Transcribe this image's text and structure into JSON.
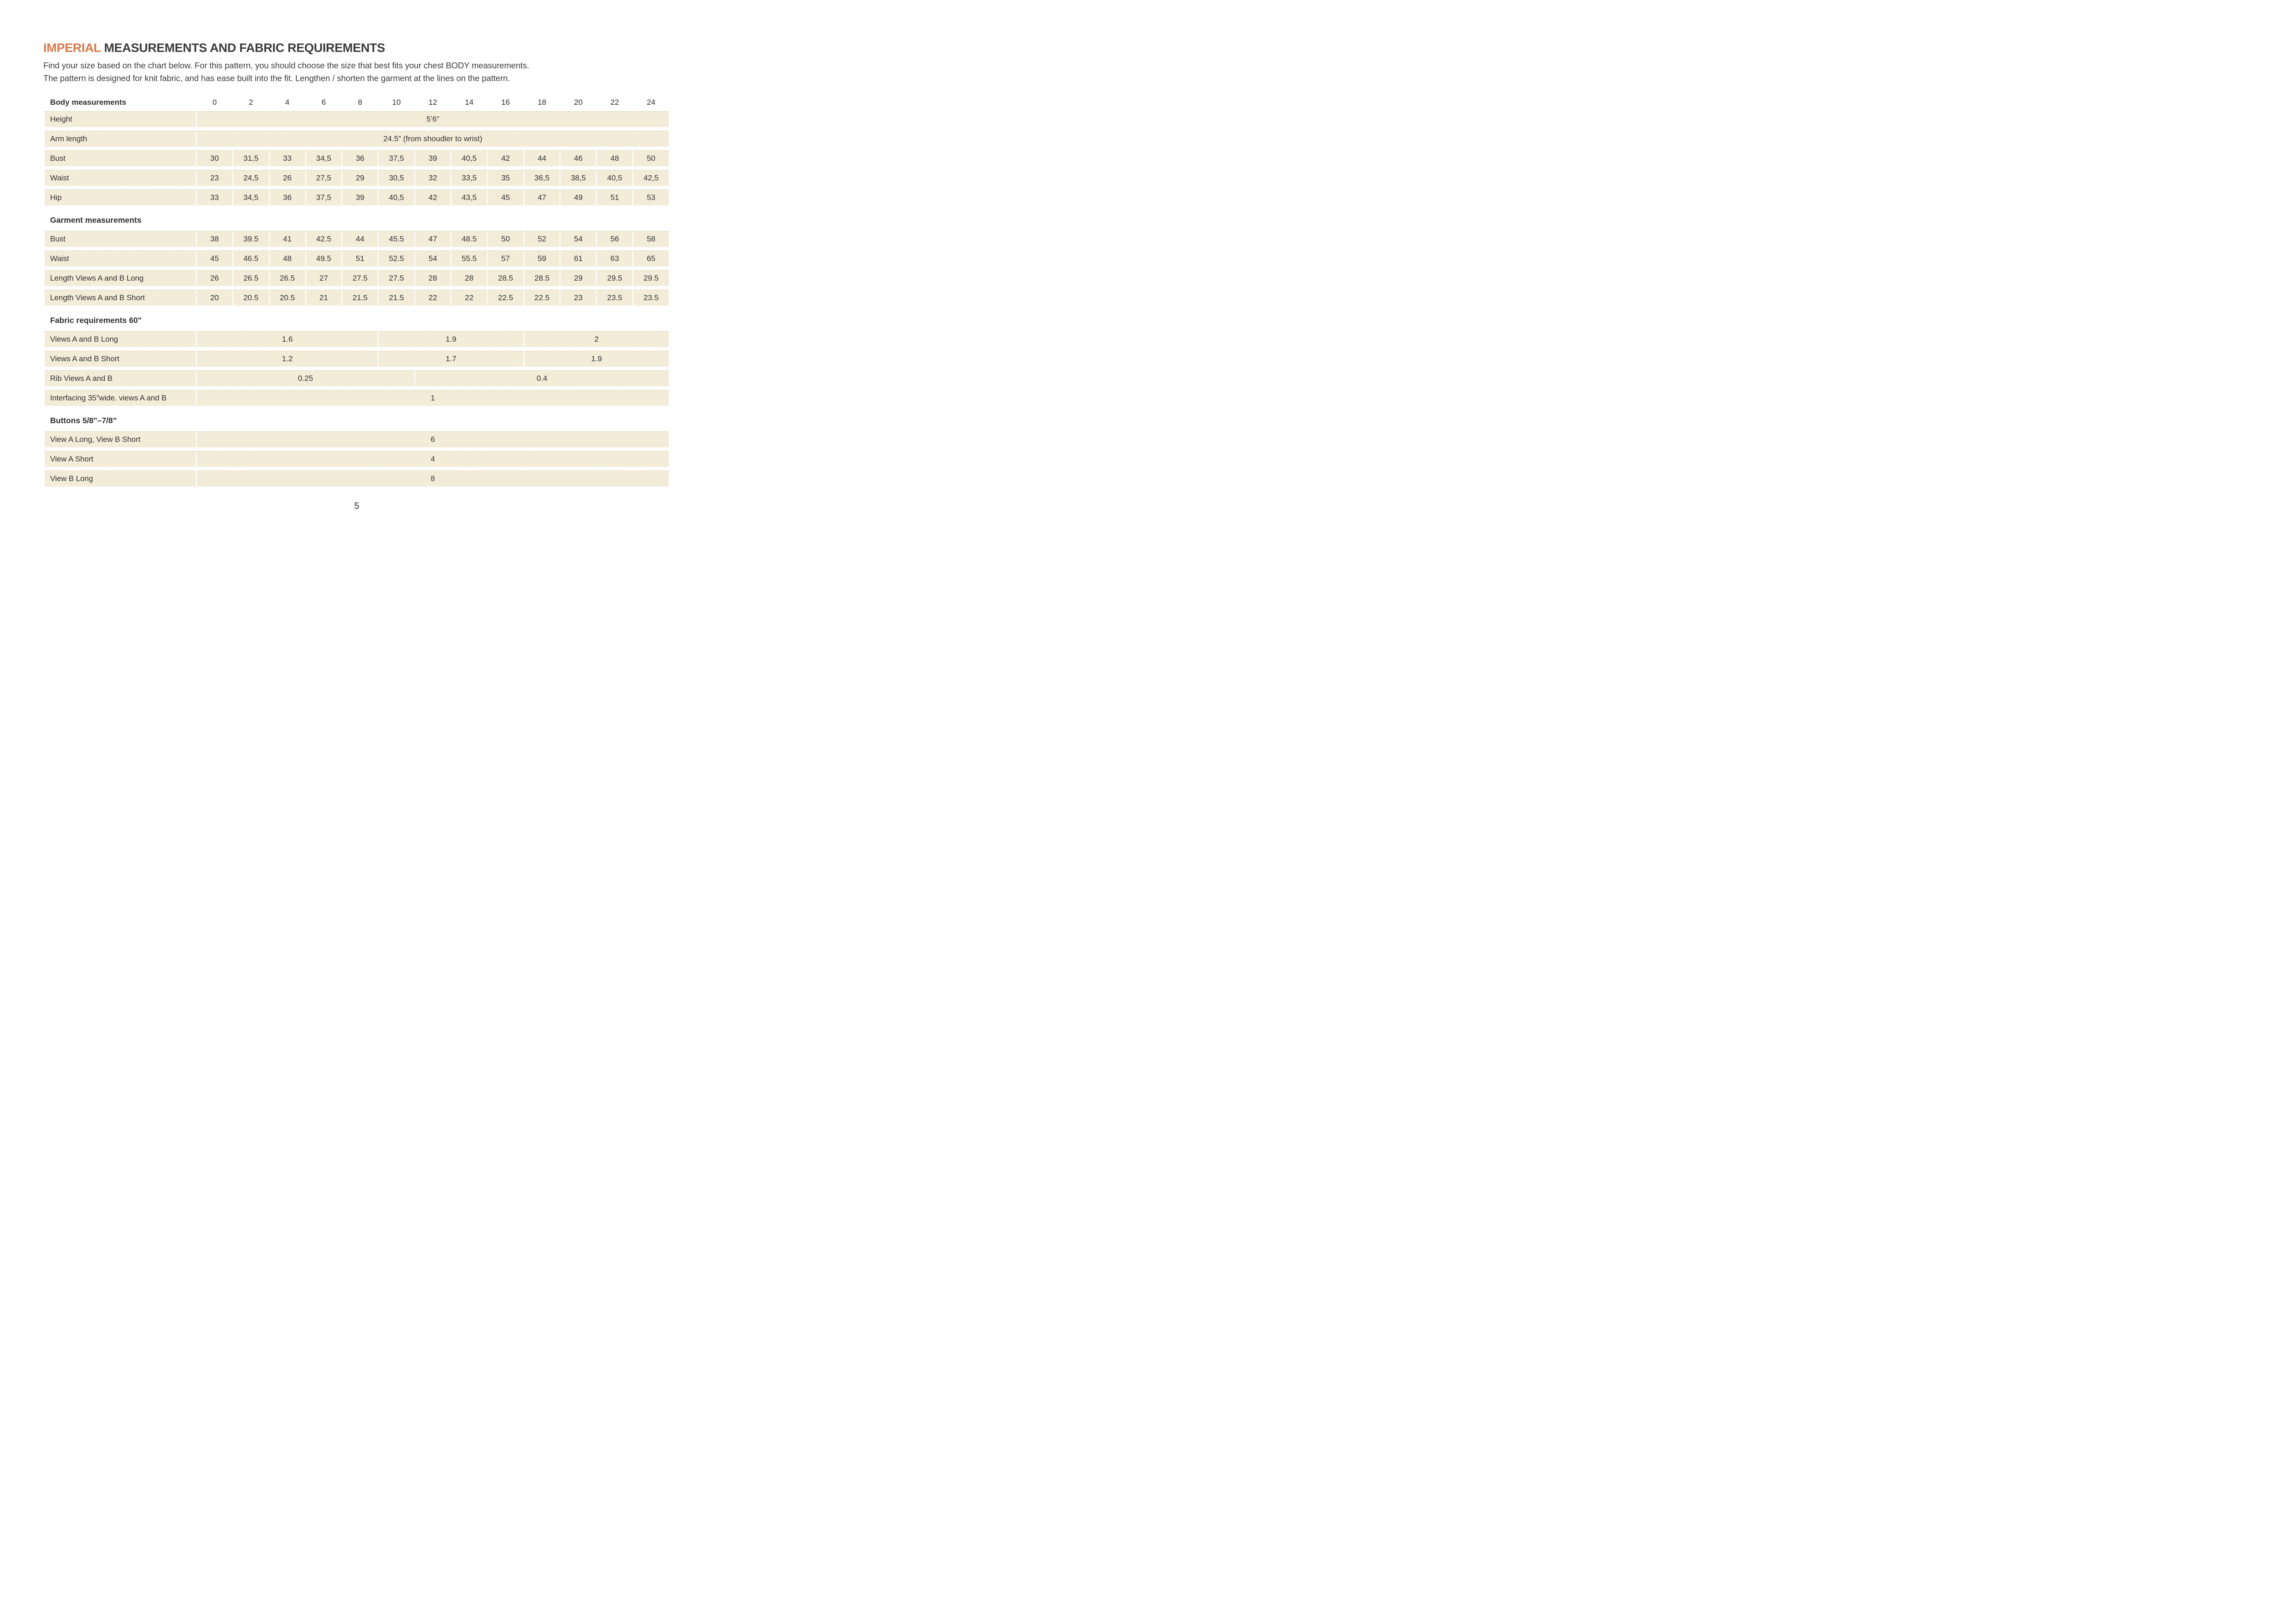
{
  "page": {
    "title_accent": "IMPERIAL",
    "title_rest": " MEASUREMENTS AND FABRIC REQUIREMENTS",
    "intro_line1": "Find your size based on the chart below. For this pattern, you should choose the size that best fits your chest BODY measurements.",
    "intro_line2": "The pattern is designed for knit fabric, and has ease built into the fit. Lengthen / shorten the garment at the lines on the pattern.",
    "page_number": "5",
    "colors": {
      "accent": "#d4794a",
      "row_background": "#f3ecd9",
      "dash_border": "#d6ccae"
    }
  },
  "table": {
    "header": {
      "label": "Body measurements",
      "sizes": [
        "0",
        "2",
        "4",
        "6",
        "8",
        "10",
        "12",
        "14",
        "16",
        "18",
        "20",
        "22",
        "24"
      ]
    },
    "body_rows": [
      {
        "label": "Height",
        "groups": [
          {
            "value": "5’6”",
            "span": 13
          }
        ]
      },
      {
        "label": "Arm length",
        "groups": [
          {
            "value": "24.5” (from shoudler to wrist)",
            "span": 13
          }
        ]
      },
      {
        "label": "Bust",
        "cells": [
          "30",
          "31,5",
          "33",
          "34,5",
          "36",
          "37,5",
          "39",
          "40,5",
          "42",
          "44",
          "46",
          "48",
          "50"
        ]
      },
      {
        "label": "Waist",
        "cells": [
          "23",
          "24,5",
          "26",
          "27,5",
          "29",
          "30,5",
          "32",
          "33,5",
          "35",
          "36,5",
          "38,5",
          "40,5",
          "42,5"
        ]
      },
      {
        "label": "Hip",
        "cells": [
          "33",
          "34,5",
          "36",
          "37,5",
          "39",
          "40,5",
          "42",
          "43,5",
          "45",
          "47",
          "49",
          "51",
          "53"
        ]
      }
    ],
    "sections": [
      {
        "title": "Garment measurements",
        "rows": [
          {
            "label": "Bust",
            "cells": [
              "38",
              "39.5",
              "41",
              "42.5",
              "44",
              "45.5",
              "47",
              "48.5",
              "50",
              "52",
              "54",
              "56",
              "58"
            ]
          },
          {
            "label": "Waist",
            "cells": [
              "45",
              "46.5",
              "48",
              "49.5",
              "51",
              "52.5",
              "54",
              "55.5",
              "57",
              "59",
              "61",
              "63",
              "65"
            ]
          },
          {
            "label": "Length Views A and B Long",
            "cells": [
              "26",
              "26.5",
              "26.5",
              "27",
              "27.5",
              "27.5",
              "28",
              "28",
              "28.5",
              "28.5",
              "29",
              "29.5",
              "29.5"
            ]
          },
          {
            "label": "Length Views A and B Short",
            "cells": [
              "20",
              "20.5",
              "20.5",
              "21",
              "21.5",
              "21.5",
              "22",
              "22",
              "22.5",
              "22.5",
              "23",
              "23.5",
              "23.5"
            ]
          }
        ]
      },
      {
        "title": "Fabric requirements 60\"",
        "rows": [
          {
            "label": "Views A and B Long",
            "groups": [
              {
                "value": "1.6",
                "span": 5
              },
              {
                "value": "1.9",
                "span": 4
              },
              {
                "value": "2",
                "span": 4
              }
            ]
          },
          {
            "label": "Views A and B Short",
            "groups": [
              {
                "value": "1.2",
                "span": 5
              },
              {
                "value": "1.7",
                "span": 4
              },
              {
                "value": "1.9",
                "span": 4
              }
            ]
          },
          {
            "label": "Rib Views A and B",
            "groups": [
              {
                "value": "0.25",
                "span": 6
              },
              {
                "value": "0.4",
                "span": 7
              }
            ]
          },
          {
            "label": "Interfacing 35”wide. views A and B",
            "groups": [
              {
                "value": "1",
                "span": 13
              }
            ]
          }
        ]
      },
      {
        "title": "Buttons 5/8\"–7/8”",
        "rows": [
          {
            "label": "View A Long, View B Short",
            "groups": [
              {
                "value": "6",
                "span": 13
              }
            ]
          },
          {
            "label": "View A Short",
            "groups": [
              {
                "value": "4",
                "span": 13
              }
            ]
          },
          {
            "label": "View B Long",
            "groups": [
              {
                "value": "8",
                "span": 13
              }
            ]
          }
        ]
      }
    ]
  }
}
